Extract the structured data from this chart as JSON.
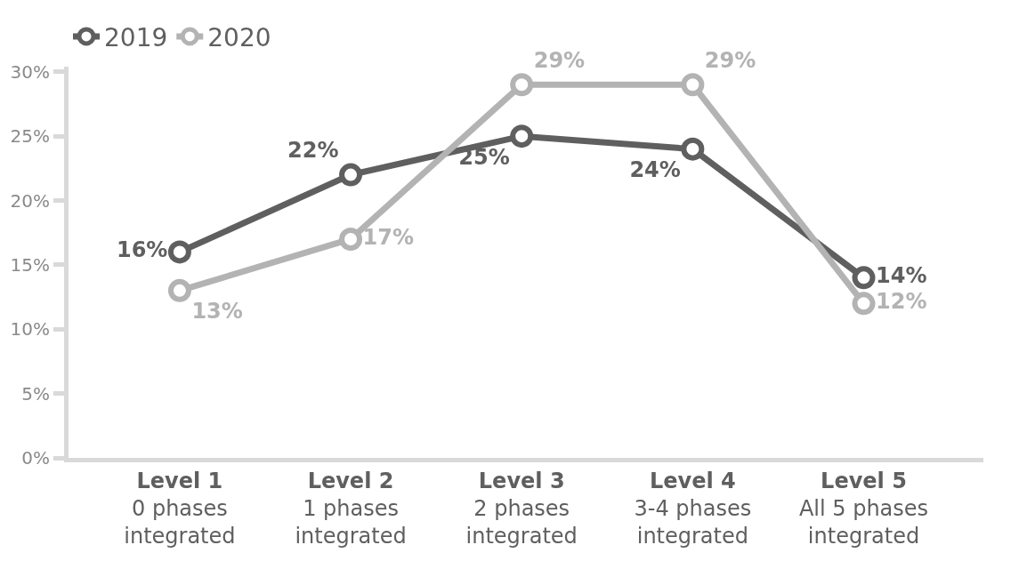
{
  "chart_data": {
    "type": "line",
    "categories": [
      "Level 1\n0 phases\nintegrated",
      "Level 2\n1 phases\nintegrated",
      "Level 3\n2 phases\nintegrated",
      "Level 4\n3-4 phases\nintegrated",
      "Level 5\nAll 5 phases\nintegrated"
    ],
    "series": [
      {
        "name": "2019",
        "color": "#5f5f5f",
        "values": [
          16,
          22,
          25,
          24,
          14
        ],
        "value_labels": [
          "16%",
          "22%",
          "25%",
          "24%",
          "14%"
        ]
      },
      {
        "name": "2020",
        "color": "#b3b3b3",
        "values": [
          13,
          17,
          29,
          29,
          12
        ],
        "value_labels": [
          "13%",
          "17%",
          "29%",
          "29%",
          "12%"
        ]
      }
    ],
    "ylim": [
      0,
      30.4
    ],
    "yticks": [
      {
        "value": 0,
        "label": "0%"
      },
      {
        "value": 5,
        "label": "5%"
      },
      {
        "value": 10,
        "label": "10%"
      },
      {
        "value": 15,
        "label": "15%"
      },
      {
        "value": 20,
        "label": "20%"
      },
      {
        "value": 25,
        "label": "25%"
      },
      {
        "value": 30,
        "label": "30%"
      }
    ],
    "legend": "top left",
    "marker": "circle",
    "line_style": "solid"
  }
}
